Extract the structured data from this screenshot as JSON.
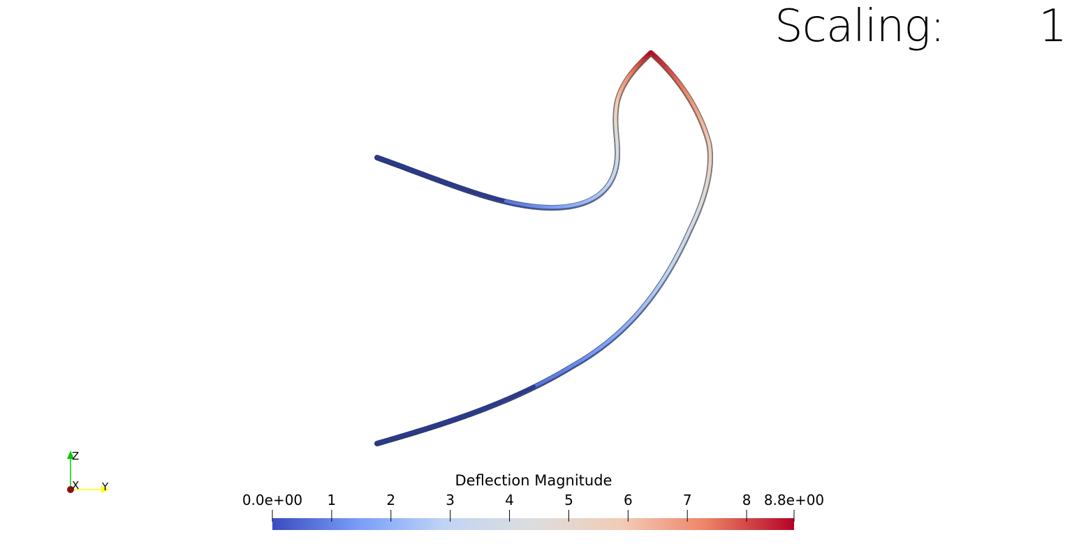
{
  "overlay": {
    "scaling_label": "Scaling:",
    "scaling_value": "1"
  },
  "scalar_bar": {
    "title": "Deflection Magnitude",
    "range": [
      0,
      8.8
    ],
    "ticks": [
      {
        "value": 0,
        "label": "0.0e+00"
      },
      {
        "value": 1,
        "label": "1"
      },
      {
        "value": 2,
        "label": "2"
      },
      {
        "value": 3,
        "label": "3"
      },
      {
        "value": 4,
        "label": "4"
      },
      {
        "value": 5,
        "label": "5"
      },
      {
        "value": 6,
        "label": "6"
      },
      {
        "value": 7,
        "label": "7"
      },
      {
        "value": 8,
        "label": "8"
      },
      {
        "value": 8.8,
        "label": "8.8e+00"
      }
    ],
    "colormap": [
      "#3b4cc0",
      "#7b9ff9",
      "#c0d4f5",
      "#dddddd",
      "#f2cbb7",
      "#ee8468",
      "#b40426"
    ]
  },
  "axes": {
    "labels": {
      "x": "X",
      "y": "Y",
      "z": "Z"
    },
    "colors": {
      "x": "#8b1010",
      "y": "#ffff00",
      "z": "#00cc00"
    }
  }
}
